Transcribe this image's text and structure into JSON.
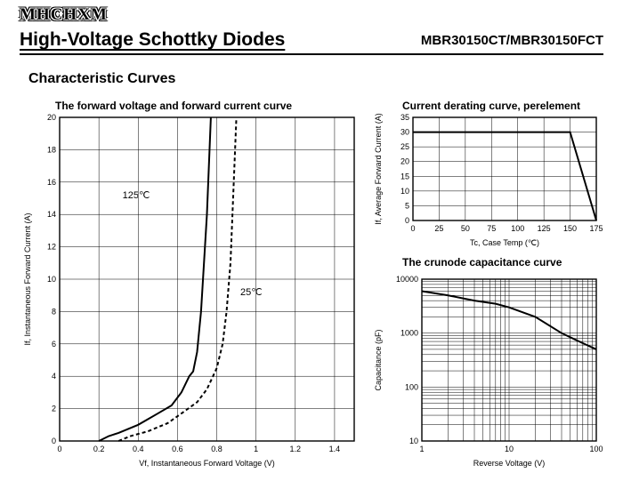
{
  "logo": "MHCHXM",
  "main_title": "High-Voltage Schottky Diodes",
  "part_number": "MBR30150CT/MBR30150FCT",
  "section_title": "Characteristic Curves",
  "chart1": {
    "type": "line",
    "title": "The forward voltage and forward current curve",
    "xlabel": "Vf, Instantaneous Forward Voltage (V)",
    "ylabel": "If, Instantaneous Forward Current (A)",
    "xlim": [
      0,
      1.5
    ],
    "xticks": [
      0,
      0.2,
      0.4,
      0.6,
      0.8,
      1,
      1.2,
      1.4
    ],
    "ylim": [
      0,
      20
    ],
    "yticks": [
      0,
      2,
      4,
      6,
      8,
      10,
      12,
      14,
      16,
      18,
      20
    ],
    "background_color": "#ffffff",
    "grid_color": "#000000",
    "series": [
      {
        "label": "125℃",
        "style": "solid",
        "label_x": 0.32,
        "label_y": 15,
        "line_width": 2,
        "points": [
          [
            0.2,
            0
          ],
          [
            0.25,
            0.3
          ],
          [
            0.3,
            0.5
          ],
          [
            0.4,
            1.0
          ],
          [
            0.5,
            1.7
          ],
          [
            0.57,
            2.2
          ],
          [
            0.62,
            3.0
          ],
          [
            0.66,
            4.0
          ],
          [
            0.68,
            4.3
          ],
          [
            0.7,
            5.5
          ],
          [
            0.72,
            8.0
          ],
          [
            0.73,
            10.0
          ],
          [
            0.75,
            14.0
          ],
          [
            0.77,
            20.0
          ]
        ]
      },
      {
        "label": "25℃",
        "style": "dash",
        "label_x": 0.92,
        "label_y": 9,
        "line_width": 2,
        "points": [
          [
            0.3,
            0
          ],
          [
            0.36,
            0.3
          ],
          [
            0.45,
            0.6
          ],
          [
            0.55,
            1.1
          ],
          [
            0.62,
            1.7
          ],
          [
            0.7,
            2.4
          ],
          [
            0.75,
            3.2
          ],
          [
            0.8,
            4.5
          ],
          [
            0.83,
            6.0
          ],
          [
            0.85,
            8.0
          ],
          [
            0.87,
            11.0
          ],
          [
            0.88,
            14.0
          ],
          [
            0.9,
            20.0
          ]
        ]
      }
    ]
  },
  "chart2": {
    "type": "line",
    "title": "Current derating curve, perelement",
    "xlabel": "Tc, Case Temp (℃)",
    "ylabel": "If, Average Forward Current (A)",
    "xlim": [
      0,
      175
    ],
    "xticks": [
      0,
      25,
      50,
      75,
      100,
      125,
      150,
      175
    ],
    "ylim": [
      0,
      35
    ],
    "yticks": [
      0,
      5,
      10,
      15,
      20,
      25,
      30,
      35
    ],
    "background_color": "#ffffff",
    "grid_color": "#000000",
    "series": [
      {
        "style": "solid",
        "line_width": 2.5,
        "points": [
          [
            0,
            30
          ],
          [
            150,
            30
          ],
          [
            175,
            0
          ]
        ]
      }
    ]
  },
  "chart3": {
    "type": "line",
    "title": "The crunode capacitance curve",
    "xlabel": "Reverse Voltage (V)",
    "ylabel": "Capacitance (pF)",
    "xscale": "log",
    "xlim": [
      1,
      100
    ],
    "xticks": [
      1,
      10,
      100
    ],
    "yscale": "log",
    "ylim": [
      10,
      10000
    ],
    "yticks": [
      10,
      100,
      1000,
      10000
    ],
    "background_color": "#ffffff",
    "grid_color": "#000000",
    "series": [
      {
        "style": "solid",
        "line_width": 2,
        "points": [
          [
            1,
            6000
          ],
          [
            2,
            5000
          ],
          [
            4,
            4000
          ],
          [
            7,
            3500
          ],
          [
            10,
            3000
          ],
          [
            20,
            2000
          ],
          [
            40,
            1000
          ],
          [
            70,
            650
          ],
          [
            100,
            500
          ]
        ]
      }
    ]
  }
}
